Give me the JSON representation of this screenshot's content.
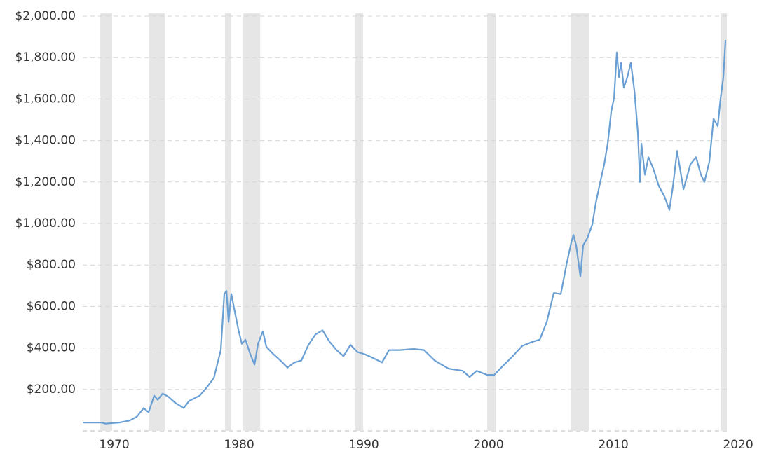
{
  "chart_data": {
    "type": "line",
    "x": [
      1967.47,
      1968.99,
      1969.27,
      1970.39,
      1971.24,
      1971.8,
      1972.36,
      1972.75,
      1973.2,
      1973.48,
      1973.88,
      1974.33,
      1974.89,
      1975.56,
      1976.01,
      1976.85,
      1977.42,
      1977.98,
      1978.54,
      1978.82,
      1978.99,
      1979.16,
      1979.38,
      1979.61,
      1979.94,
      1980.22,
      1980.51,
      1980.9,
      1981.24,
      1981.52,
      1981.91,
      1982.19,
      1982.75,
      1983.31,
      1983.88,
      1984.44,
      1985.0,
      1985.56,
      1986.12,
      1986.69,
      1987.25,
      1987.81,
      1988.37,
      1988.93,
      1989.49,
      1990.06,
      1990.62,
      1991.46,
      1992.02,
      1992.87,
      1993.99,
      1994.83,
      1995.67,
      1996.8,
      1997.92,
      1998.48,
      1999.04,
      1999.89,
      2000.45,
      2001.01,
      2001.85,
      2002.7,
      2003.54,
      2004.1,
      2004.66,
      2005.22,
      2005.79,
      2006.24,
      2006.63,
      2006.8,
      2007.02,
      2007.36,
      2007.58,
      2007.92,
      2008.31,
      2008.6,
      2008.88,
      2009.27,
      2009.55,
      2009.83,
      2010.06,
      2010.28,
      2010.45,
      2010.62,
      2010.84,
      2011.12,
      2011.4,
      2011.69,
      2011.97,
      2012.13,
      2012.25,
      2012.53,
      2012.81,
      2013.2,
      2013.65,
      2014.1,
      2014.49,
      2014.78,
      2015.11,
      2015.62,
      2016.18,
      2016.63,
      2017.02,
      2017.3,
      2017.7,
      2018.03,
      2018.37,
      2018.6,
      2018.82,
      2018.99
    ],
    "series": [
      {
        "color": "#6a9fd4",
        "values": [
          40,
          40,
          35,
          40,
          50,
          68,
          110,
          90,
          170,
          150,
          180,
          165,
          135,
          110,
          145,
          170,
          210,
          255,
          390,
          660,
          675,
          525,
          660,
          590,
          490,
          420,
          440,
          370,
          320,
          420,
          480,
          405,
          370,
          340,
          305,
          330,
          340,
          415,
          465,
          485,
          430,
          390,
          360,
          415,
          380,
          370,
          355,
          330,
          390,
          390,
          395,
          390,
          340,
          300,
          290,
          260,
          290,
          270,
          270,
          305,
          355,
          410,
          430,
          440,
          525,
          665,
          660,
          800,
          910,
          945,
          895,
          745,
          895,
          930,
          995,
          1100,
          1180,
          1285,
          1385,
          1540,
          1605,
          1825,
          1705,
          1775,
          1655,
          1705,
          1775,
          1640,
          1435,
          1200,
          1385,
          1235,
          1320,
          1265,
          1180,
          1130,
          1065,
          1180,
          1350,
          1165,
          1285,
          1320,
          1235,
          1200,
          1300,
          1505,
          1470,
          1605,
          1705,
          1885
        ]
      }
    ],
    "shaded_periods": [
      [
        1968.88,
        1969.83
      ],
      [
        1972.75,
        1974.1
      ],
      [
        1978.88,
        1979.38
      ],
      [
        1980.34,
        1981.69
      ],
      [
        1989.33,
        1989.94
      ],
      [
        1999.89,
        2000.56
      ],
      [
        2006.57,
        2008.03
      ],
      [
        2018.65,
        2019.1
      ]
    ],
    "shade_color": "#e6e6e6",
    "xlim": [
      1967.47,
      2020.11
    ],
    "xticks": [
      1970,
      1980,
      1990,
      2000,
      2010,
      2020
    ],
    "ylim": [
      0,
      2000
    ],
    "yticks": [
      {
        "value": 200,
        "label": "$200.00"
      },
      {
        "value": 400,
        "label": "$400.00"
      },
      {
        "value": 600,
        "label": "$600.00"
      },
      {
        "value": 800,
        "label": "$800.00"
      },
      {
        "value": 1000,
        "label": "$1,000.00"
      },
      {
        "value": 1200,
        "label": "$1,200.00"
      },
      {
        "value": 1400,
        "label": "$1,400.00"
      },
      {
        "value": 1600,
        "label": "$1,600.00"
      },
      {
        "value": 1800,
        "label": "$1,800.00"
      },
      {
        "value": 2000,
        "label": "$2,000.00"
      }
    ],
    "grid": true
  }
}
